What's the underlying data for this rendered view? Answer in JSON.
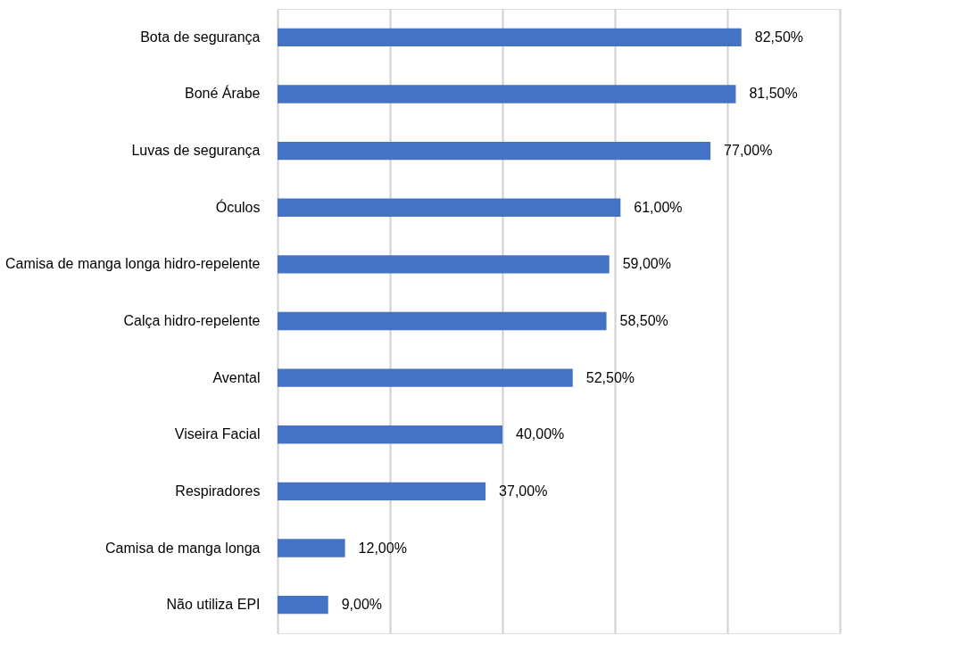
{
  "chart_data": {
    "type": "bar",
    "orientation": "horizontal",
    "categories": [
      "Bota de segurança",
      "Boné Árabe",
      "Luvas de segurança",
      "Óculos",
      "Camisa de manga longa hidro-repelente",
      "Calça hidro-repelente",
      "Avental",
      "Viseira Facial",
      "Respiradores",
      "Camisa de manga longa",
      "Não utiliza EPI"
    ],
    "values": [
      82.5,
      81.5,
      77,
      61,
      59,
      58.5,
      52.5,
      40,
      37,
      12,
      9
    ],
    "value_labels": [
      "82,50%",
      "81,50%",
      "77,00%",
      "61,00%",
      "59,00%",
      "58,50%",
      "52,50%",
      "40,00%",
      "37,00%",
      "12,00%",
      "9,00%"
    ],
    "color": "#4472c4",
    "xlim": [
      0,
      100
    ],
    "xticks": [
      {
        "value": 0,
        "label": null
      },
      {
        "value": 20,
        "label": null
      },
      {
        "value": 40,
        "label": null
      },
      {
        "value": 60,
        "label": null
      },
      {
        "value": 80,
        "label": null
      },
      {
        "value": 100,
        "label": null
      }
    ],
    "grid": "x",
    "tick_labels": "y"
  }
}
